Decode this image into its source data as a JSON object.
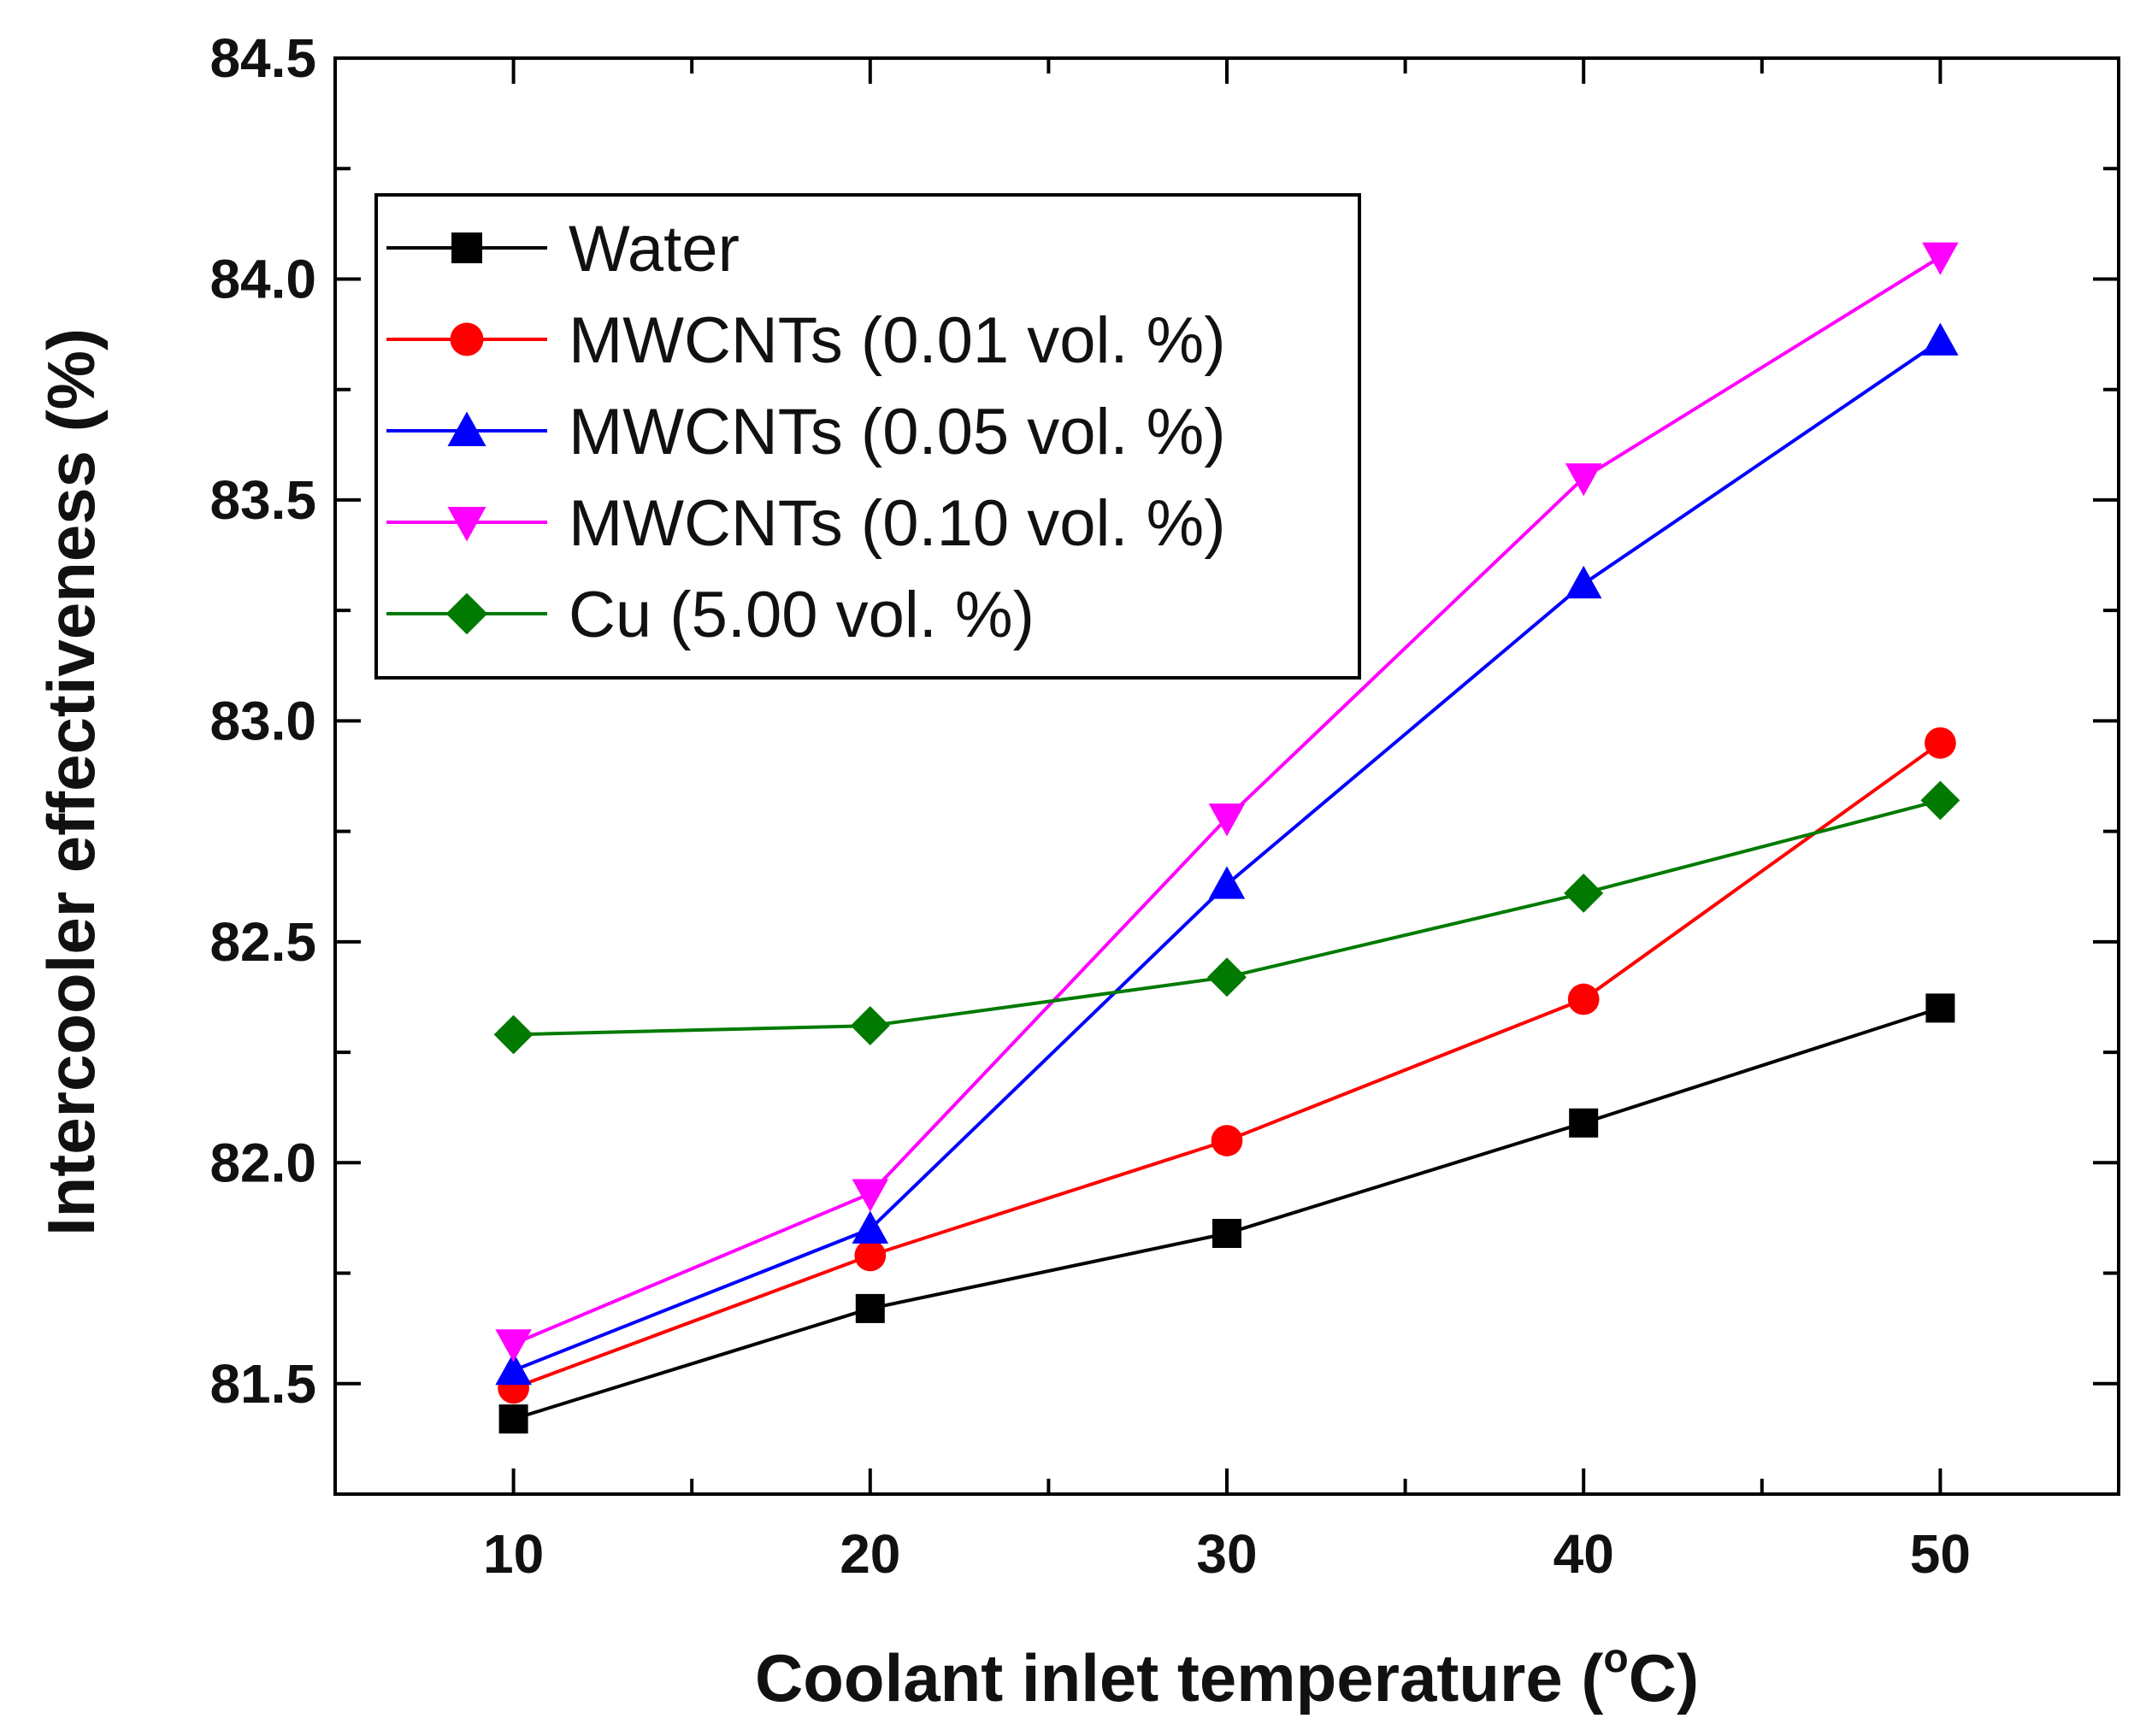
{
  "chart_data": {
    "type": "line",
    "title": "",
    "xlabel": "Coolant inlet temperature (",
    "xlabel_degree": "o",
    "xlabel_unit": "C)",
    "ylabel": "Intercooler effectiveness (%)",
    "x": [
      10,
      20,
      30,
      40,
      50
    ],
    "xlim": [
      5,
      55
    ],
    "ylim": [
      81.25,
      84.5
    ],
    "xticks": [
      10,
      20,
      30,
      40,
      50
    ],
    "xtick_labels": [
      "10",
      "20",
      "30",
      "40",
      "50"
    ],
    "yticks": [
      81.5,
      82.0,
      82.5,
      83.0,
      83.5,
      84.0,
      84.5
    ],
    "ytick_labels": [
      "81.5",
      "82.0",
      "82.5",
      "83.0",
      "83.5",
      "84.0",
      "84.5"
    ],
    "grid": false,
    "legend_position": "top-left",
    "series": [
      {
        "name": "Water",
        "color": "#000000",
        "marker": "square",
        "values": [
          81.42,
          81.67,
          81.84,
          82.09,
          82.35
        ]
      },
      {
        "name": "MWCNTs (0.01 vol. %)",
        "color": "#ff0000",
        "marker": "circle",
        "values": [
          81.49,
          81.79,
          82.05,
          82.37,
          82.95
        ]
      },
      {
        "name": "MWCNTs (0.05 vol. %)",
        "color": "#0000ff",
        "marker": "triangle-up",
        "values": [
          81.53,
          81.85,
          82.63,
          83.31,
          83.86
        ]
      },
      {
        "name": "MWCNTs (0.10 vol. %)",
        "color": "#ff00ff",
        "marker": "triangle-down",
        "values": [
          81.59,
          81.93,
          82.78,
          83.55,
          84.05
        ]
      },
      {
        "name": "Cu (5.00 vol. %)",
        "color": "#007a00",
        "marker": "diamond",
        "values": [
          82.29,
          82.31,
          82.42,
          82.61,
          82.82
        ]
      }
    ]
  }
}
